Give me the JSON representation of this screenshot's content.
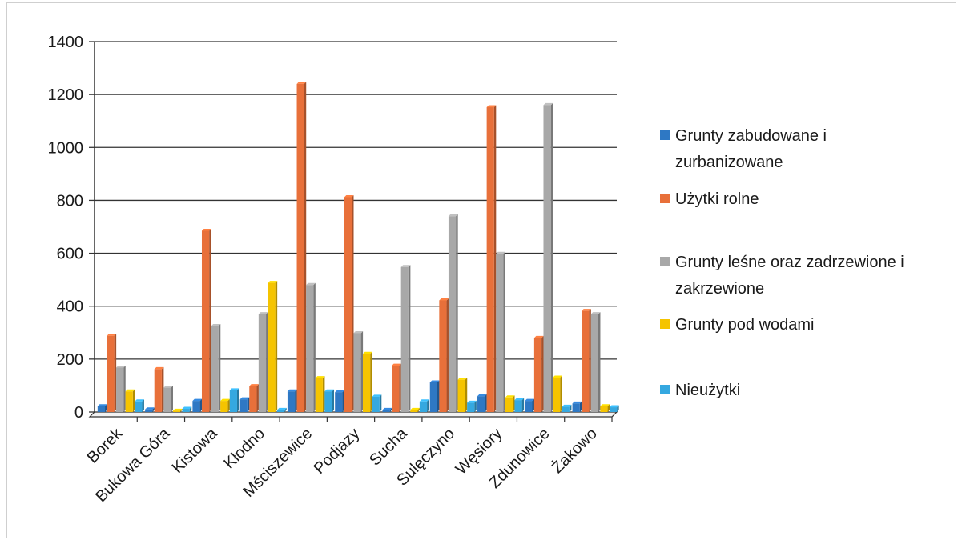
{
  "chart_data": {
    "type": "bar",
    "title": "",
    "xlabel": "",
    "ylabel": "",
    "ylim": [
      0,
      1400
    ],
    "yticks": [
      0,
      200,
      400,
      600,
      800,
      1000,
      1200,
      1400
    ],
    "grid": true,
    "legend_position": "right",
    "categories": [
      "Borek",
      "Bukowa Góra",
      "Kistowa",
      "Kłodno",
      "Mściszewice",
      "Podjazy",
      "Sucha",
      "Sulęczyno",
      "Węsiory",
      "Zdunowice",
      "Żakowo"
    ],
    "series": [
      {
        "name": "Grunty zabudowane i zurbanizowane",
        "legend_lines": [
          "Grunty zabudowane i",
          "zurbanizowane"
        ],
        "color": "#2e78c4",
        "values": [
          22,
          10,
          42,
          48,
          78,
          75,
          8,
          112,
          60,
          42,
          32
        ]
      },
      {
        "name": "Użytki rolne",
        "legend_lines": [
          "Użytki rolne"
        ],
        "color": "#e8703a",
        "values": [
          288,
          162,
          685,
          98,
          1240,
          812,
          175,
          422,
          1152,
          280,
          382
        ]
      },
      {
        "name": "Grunty leśne oraz zadrzewione i zakrzewione",
        "legend_lines": [
          "Grunty leśne oraz zadrzewione i",
          "zakrzewione"
        ],
        "color": "#a8a8a8",
        "values": [
          168,
          92,
          325,
          370,
          480,
          298,
          548,
          740,
          598,
          1160,
          370
        ]
      },
      {
        "name": "Grunty pod wodami",
        "legend_lines": [
          "Grunty pod wodami"
        ],
        "color": "#f5c400",
        "values": [
          78,
          5,
          42,
          488,
          128,
          220,
          8,
          122,
          55,
          130,
          22
        ]
      },
      {
        "name": "Nieużytki",
        "legend_lines": [
          "Nieużytki"
        ],
        "color": "#35a8e0",
        "values": [
          40,
          12,
          82,
          8,
          78,
          58,
          40,
          35,
          45,
          20,
          18
        ]
      }
    ]
  }
}
